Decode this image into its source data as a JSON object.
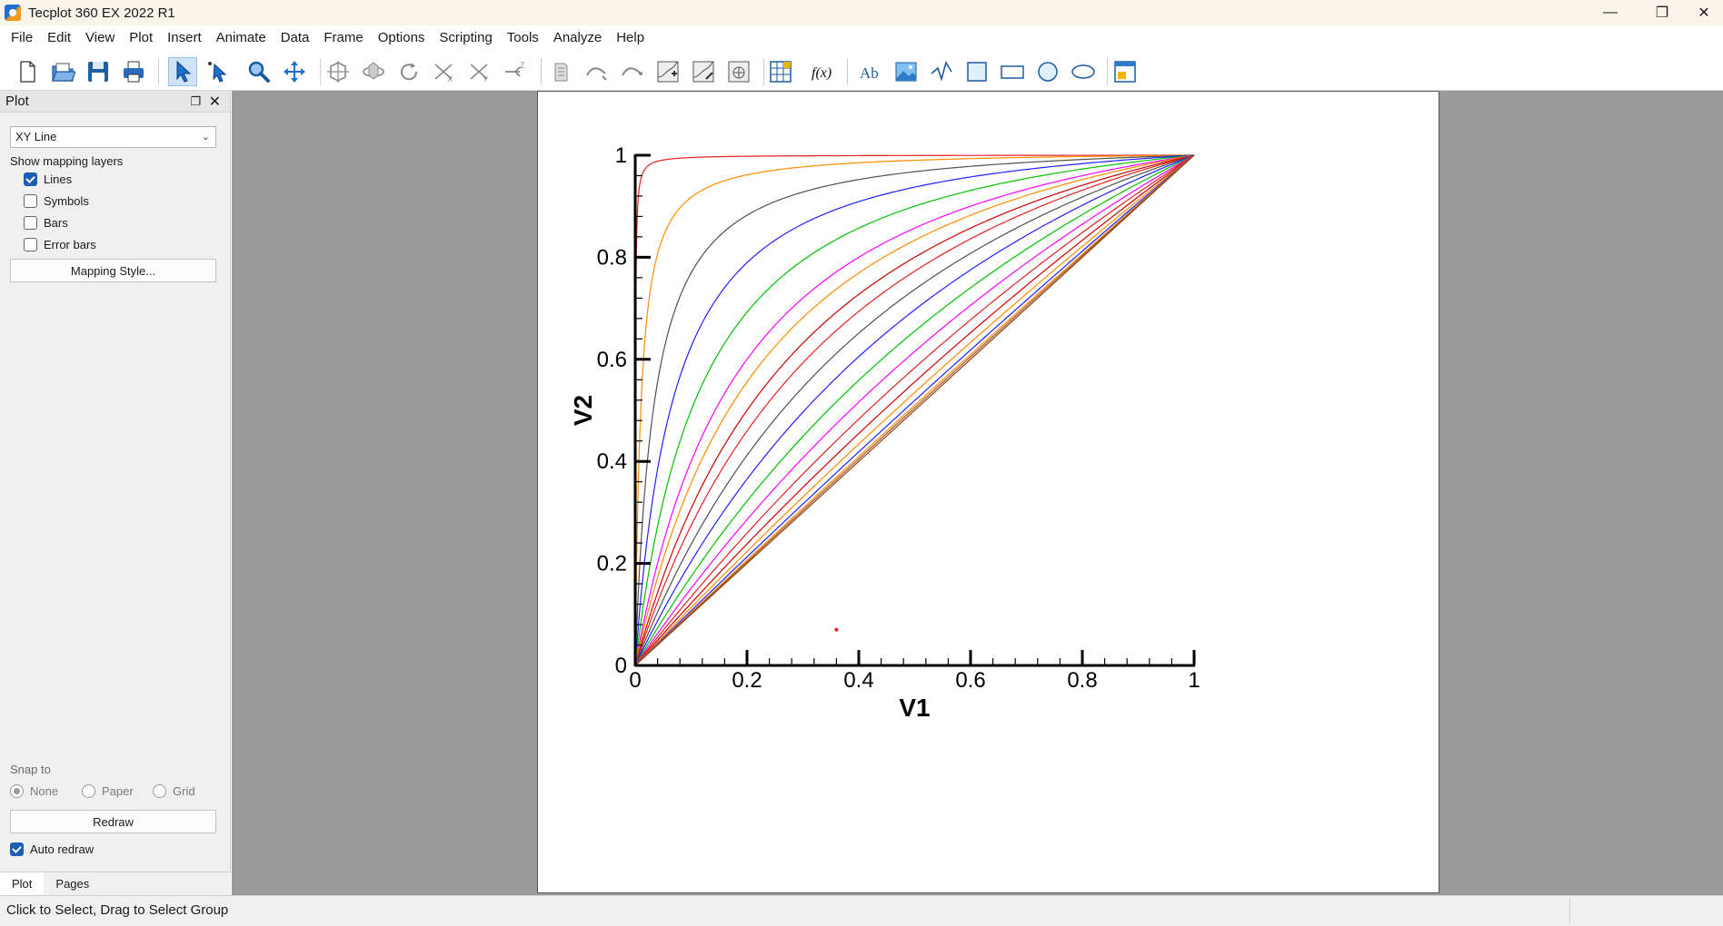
{
  "window": {
    "title": "Tecplot 360 EX 2022 R1",
    "controls": {
      "minimize": "—",
      "maximize": "❐",
      "close": "✕"
    }
  },
  "menu": [
    "File",
    "Edit",
    "View",
    "Plot",
    "Insert",
    "Animate",
    "Data",
    "Frame",
    "Options",
    "Scripting",
    "Tools",
    "Analyze",
    "Help"
  ],
  "toolbar": {
    "tools": [
      "new-layout",
      "open-file",
      "save",
      "print",
      "selector",
      "adjustor",
      "zoom",
      "translate",
      "probe-3d",
      "rotate-3d",
      "rotate",
      "axis-x",
      "axis-y",
      "axis-z",
      "slice",
      "streamtrace-a",
      "streamtrace-b",
      "contour-add",
      "contour-edit",
      "contour-misc",
      "data-table",
      "equation",
      "text",
      "image",
      "polyline",
      "square",
      "rectangle",
      "circle",
      "ellipse",
      "frame-tool"
    ],
    "equation_glyph": "f(x)",
    "text_glyph": "Ab"
  },
  "sidebar": {
    "header": "Plot",
    "plot_type": "XY Line",
    "layers_label": "Show mapping layers",
    "layers": [
      {
        "label": "Lines",
        "checked": true
      },
      {
        "label": "Symbols",
        "checked": false
      },
      {
        "label": "Bars",
        "checked": false
      },
      {
        "label": "Error bars",
        "checked": false
      }
    ],
    "mapping_style_button": "Mapping Style...",
    "snap_label": "Snap to",
    "snap_options": [
      {
        "label": "None",
        "selected": true
      },
      {
        "label": "Paper",
        "selected": false
      },
      {
        "label": "Grid",
        "selected": false
      }
    ],
    "redraw_button": "Redraw",
    "auto_redraw": {
      "label": "Auto redraw",
      "checked": true
    },
    "tabs": [
      {
        "label": "Plot",
        "active": true
      },
      {
        "label": "Pages",
        "active": false
      }
    ]
  },
  "status": {
    "text": "Click to Select, Drag to Select Group"
  },
  "chart_data": {
    "type": "line",
    "title": "",
    "xlabel": "V1",
    "ylabel": "V2",
    "xlim": [
      0,
      1
    ],
    "ylim": [
      0,
      1
    ],
    "xticks": [
      "0",
      "0.2",
      "0.4",
      "0.6",
      "0.8",
      "1"
    ],
    "yticks": [
      "0",
      "0.2",
      "0.4",
      "0.6",
      "0.8",
      "1"
    ],
    "grid": false,
    "legend": "none",
    "curve_form": "V2 = a·V1 / (1 + (a − 1)·V1)",
    "curves": [
      {
        "a": 2000,
        "color": "#e02020"
      },
      {
        "a": 100,
        "color": "#ff8c00"
      },
      {
        "a": 30,
        "color": "#505050"
      },
      {
        "a": 15,
        "color": "#2020ff"
      },
      {
        "a": 9,
        "color": "#00c000"
      },
      {
        "a": 6,
        "color": "#ff00ff"
      },
      {
        "a": 5,
        "color": "#ff8c00"
      },
      {
        "a": 4,
        "color": "#cc0000"
      },
      {
        "a": 3.4,
        "color": "#e82020"
      },
      {
        "a": 2.8,
        "color": "#505050"
      },
      {
        "a": 2.3,
        "color": "#2020ff"
      },
      {
        "a": 1.9,
        "color": "#00c000"
      },
      {
        "a": 1.6,
        "color": "#ff00ff"
      },
      {
        "a": 1.4,
        "color": "#e02020"
      },
      {
        "a": 1.25,
        "color": "#cc0000"
      },
      {
        "a": 1.15,
        "color": "#ff8c00"
      },
      {
        "a": 1.08,
        "color": "#2020ff"
      },
      {
        "a": 1.04,
        "color": "#ff8c00"
      },
      {
        "a": 1.02,
        "color": "#a0522d"
      },
      {
        "a": 1.0,
        "color": "#8b4513"
      }
    ],
    "extra_point": {
      "x": 0.36,
      "y": 0.07,
      "color": "#e02020"
    }
  }
}
